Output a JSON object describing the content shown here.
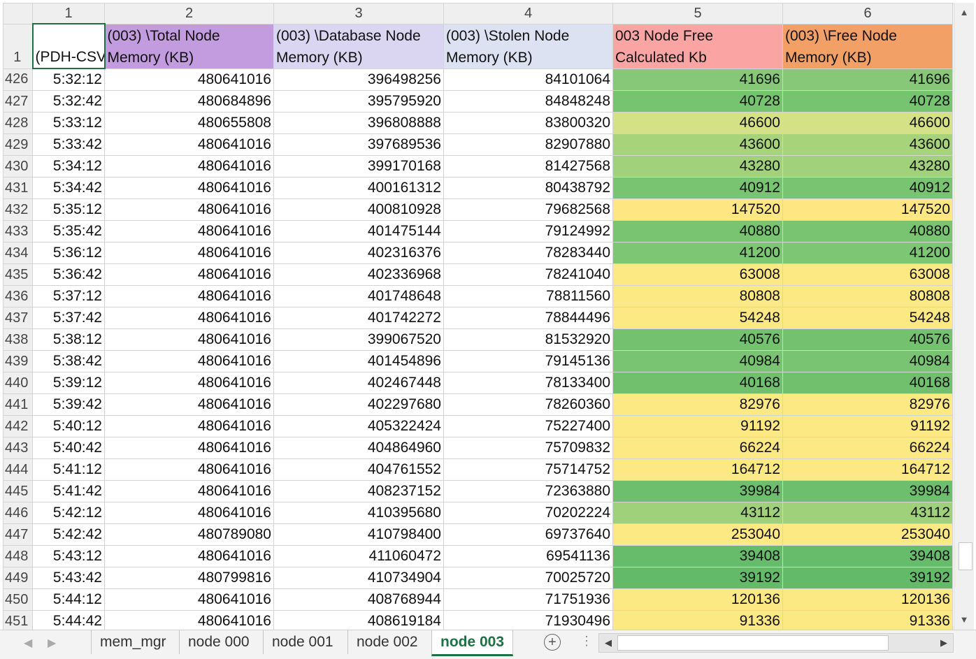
{
  "column_headers": [
    "1",
    "2",
    "3",
    "4",
    "5",
    "6"
  ],
  "header_row": {
    "row_number": "1",
    "cells": [
      {
        "text": "(PDH-CSV",
        "bg": "#ffffff"
      },
      {
        "text": "(003) \\Total Node Memory (KB)",
        "bg": "#c39ce0"
      },
      {
        "text": "(003) \\Database Node Memory (KB)",
        "bg": "#dad5f0"
      },
      {
        "text": "(003) \\Stolen Node Memory (KB)",
        "bg": "#dde2f3"
      },
      {
        "text": "003 Node Free Calculated Kb",
        "bg": "#faa4a4"
      },
      {
        "text": "(003) \\Free Node Memory (KB)",
        "bg": "#f2a066"
      }
    ]
  },
  "rows": [
    {
      "row": "426",
      "time": "5:32:12",
      "total": "480641016",
      "database": "396498256",
      "stolen": "84101064",
      "calc": "41696",
      "free": "41696",
      "color": "#86c878"
    },
    {
      "row": "427",
      "time": "5:32:42",
      "total": "480684896",
      "database": "395795920",
      "stolen": "84848248",
      "calc": "40728",
      "free": "40728",
      "color": "#76c370"
    },
    {
      "row": "428",
      "time": "5:33:12",
      "total": "480655808",
      "database": "396808888",
      "stolen": "83800320",
      "calc": "46600",
      "free": "46600",
      "color": "#d4e184"
    },
    {
      "row": "429",
      "time": "5:33:42",
      "total": "480641016",
      "database": "397689536",
      "stolen": "82907880",
      "calc": "43600",
      "free": "43600",
      "color": "#a7d47b"
    },
    {
      "row": "430",
      "time": "5:34:12",
      "total": "480641016",
      "database": "399170168",
      "stolen": "81427568",
      "calc": "43280",
      "free": "43280",
      "color": "#a1d27b"
    },
    {
      "row": "431",
      "time": "5:34:42",
      "total": "480641016",
      "database": "400161312",
      "stolen": "80438792",
      "calc": "40912",
      "free": "40912",
      "color": "#78c471"
    },
    {
      "row": "432",
      "time": "5:35:12",
      "total": "480641016",
      "database": "400810928",
      "stolen": "79682568",
      "calc": "147520",
      "free": "147520",
      "color": "#fee782"
    },
    {
      "row": "433",
      "time": "5:35:42",
      "total": "480641016",
      "database": "401475144",
      "stolen": "79124992",
      "calc": "40880",
      "free": "40880",
      "color": "#78c471"
    },
    {
      "row": "434",
      "time": "5:36:12",
      "total": "480641016",
      "database": "402316376",
      "stolen": "78283440",
      "calc": "41200",
      "free": "41200",
      "color": "#7dc673"
    },
    {
      "row": "435",
      "time": "5:36:42",
      "total": "480641016",
      "database": "402336968",
      "stolen": "78241040",
      "calc": "63008",
      "free": "63008",
      "color": "#fde983"
    },
    {
      "row": "436",
      "time": "5:37:12",
      "total": "480641016",
      "database": "401748648",
      "stolen": "78811560",
      "calc": "80808",
      "free": "80808",
      "color": "#fde983"
    },
    {
      "row": "437",
      "time": "5:37:42",
      "total": "480641016",
      "database": "401742272",
      "stolen": "78844496",
      "calc": "54248",
      "free": "54248",
      "color": "#fde983"
    },
    {
      "row": "438",
      "time": "5:38:12",
      "total": "480641016",
      "database": "399067520",
      "stolen": "81532920",
      "calc": "40576",
      "free": "40576",
      "color": "#74c26f"
    },
    {
      "row": "439",
      "time": "5:38:42",
      "total": "480641016",
      "database": "401454896",
      "stolen": "79145136",
      "calc": "40984",
      "free": "40984",
      "color": "#79c472"
    },
    {
      "row": "440",
      "time": "5:39:12",
      "total": "480641016",
      "database": "402467448",
      "stolen": "78133400",
      "calc": "40168",
      "free": "40168",
      "color": "#70c06e"
    },
    {
      "row": "441",
      "time": "5:39:42",
      "total": "480641016",
      "database": "402297680",
      "stolen": "78260360",
      "calc": "82976",
      "free": "82976",
      "color": "#fde983"
    },
    {
      "row": "442",
      "time": "5:40:12",
      "total": "480641016",
      "database": "405322424",
      "stolen": "75227400",
      "calc": "91192",
      "free": "91192",
      "color": "#fde983"
    },
    {
      "row": "443",
      "time": "5:40:42",
      "total": "480641016",
      "database": "404864960",
      "stolen": "75709832",
      "calc": "66224",
      "free": "66224",
      "color": "#fde983"
    },
    {
      "row": "444",
      "time": "5:41:12",
      "total": "480641016",
      "database": "404761552",
      "stolen": "75714752",
      "calc": "164712",
      "free": "164712",
      "color": "#fde983"
    },
    {
      "row": "445",
      "time": "5:41:42",
      "total": "480641016",
      "database": "408237152",
      "stolen": "72363880",
      "calc": "39984",
      "free": "39984",
      "color": "#6dbf6d"
    },
    {
      "row": "446",
      "time": "5:42:12",
      "total": "480641016",
      "database": "410395680",
      "stolen": "70202224",
      "calc": "43112",
      "free": "43112",
      "color": "#9fd17a"
    },
    {
      "row": "447",
      "time": "5:42:42",
      "total": "480789080",
      "database": "410798400",
      "stolen": "69737640",
      "calc": "253040",
      "free": "253040",
      "color": "#fde983"
    },
    {
      "row": "448",
      "time": "5:43:12",
      "total": "480641016",
      "database": "411060472",
      "stolen": "69541136",
      "calc": "39408",
      "free": "39408",
      "color": "#67bc6b"
    },
    {
      "row": "449",
      "time": "5:43:42",
      "total": "480799816",
      "database": "410734904",
      "stolen": "70025720",
      "calc": "39192",
      "free": "39192",
      "color": "#63bb6a"
    },
    {
      "row": "450",
      "time": "5:44:12",
      "total": "480641016",
      "database": "408768944",
      "stolen": "71751936",
      "calc": "120136",
      "free": "120136",
      "color": "#fde983"
    },
    {
      "row": "451",
      "time": "5:44:42",
      "total": "480641016",
      "database": "408619184",
      "stolen": "71930496",
      "calc": "91336",
      "free": "91336",
      "color": "#fde983"
    }
  ],
  "sheet_tabs": [
    "mem_mgr",
    "node 000",
    "node 001",
    "node 002",
    "node 003"
  ],
  "active_tab": "node 003",
  "accent_color": "#1e7145",
  "icons": {
    "scroll_up": "triangle-up-icon",
    "scroll_down": "triangle-down-icon",
    "scroll_left": "triangle-left-icon",
    "scroll_right": "triangle-right-icon",
    "add_sheet": "plus-circle-icon",
    "options": "vertical-dots-icon"
  }
}
